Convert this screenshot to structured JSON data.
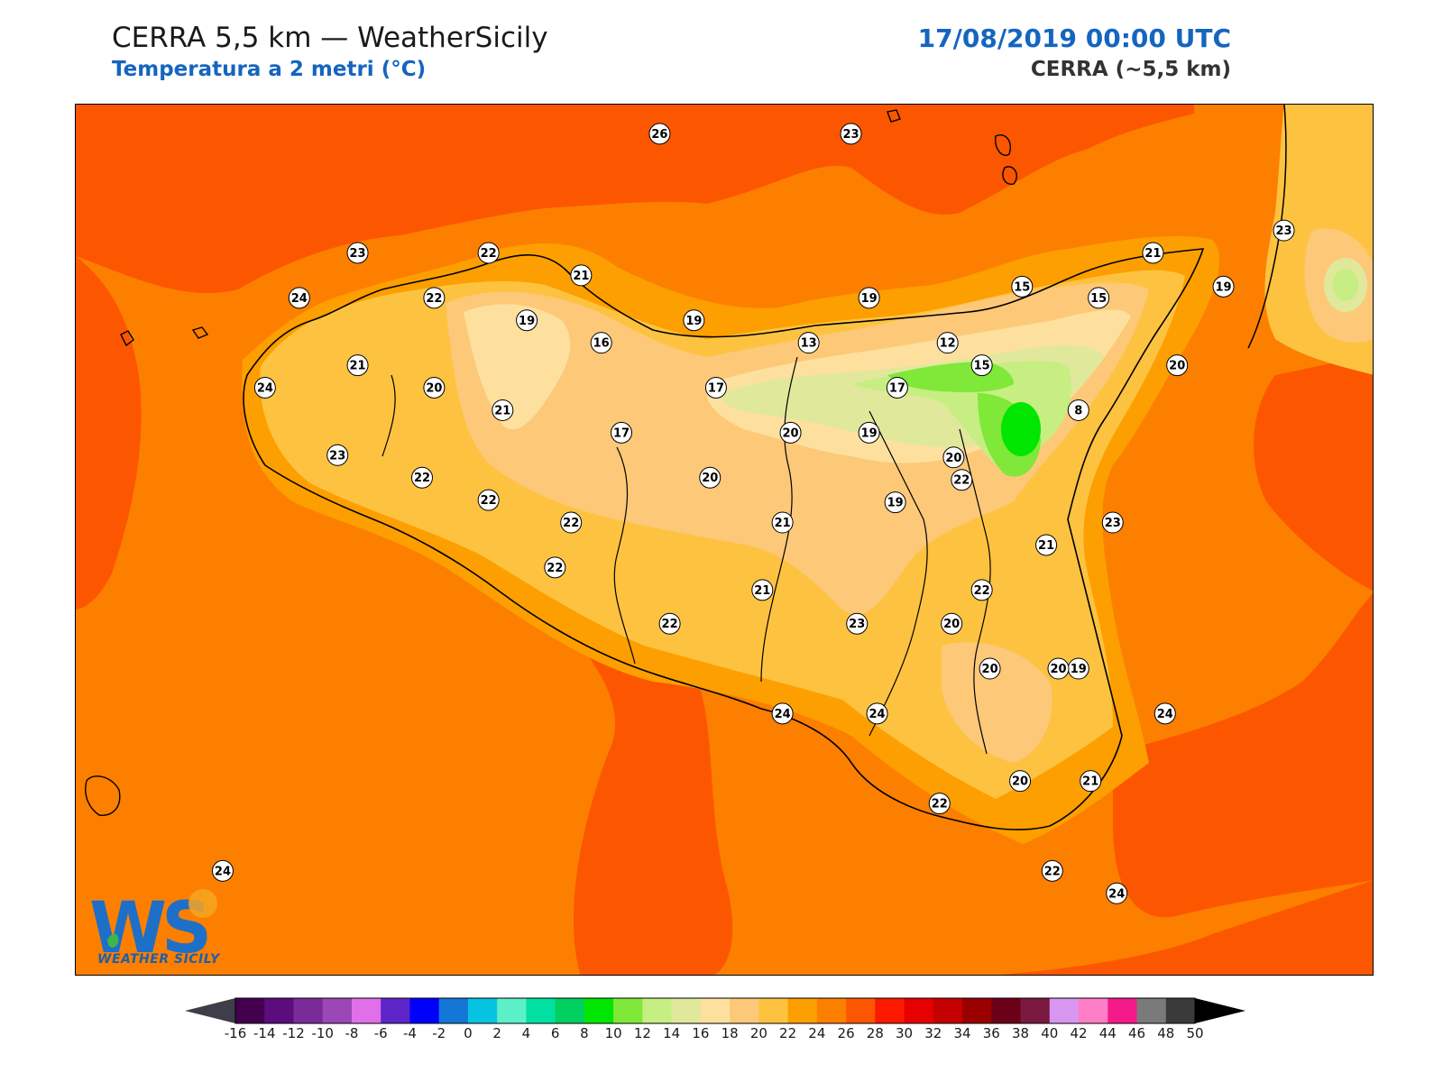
{
  "header": {
    "title": "CERRA 5,5 km — WeatherSicily",
    "subtitle": "Temperatura a 2 metri (°C)",
    "datetime": "17/08/2019 00:00 UTC",
    "model": "CERRA (~5,5 km)"
  },
  "logo": {
    "text": "WEATHER SICILY",
    "initials": "WS"
  },
  "colorbar": {
    "ticks": [
      "-16",
      "-14",
      "-12",
      "-10",
      "-8",
      "-6",
      "-4",
      "-2",
      "0",
      "2",
      "4",
      "6",
      "8",
      "10",
      "12",
      "14",
      "16",
      "18",
      "20",
      "22",
      "24",
      "26",
      "28",
      "30",
      "32",
      "34",
      "36",
      "38",
      "40",
      "42",
      "44",
      "46",
      "48",
      "50"
    ],
    "colors": [
      "#44004f",
      "#5b0d7d",
      "#7a2b99",
      "#9b47b5",
      "#e070e8",
      "#5e25c8",
      "#0000ff",
      "#1476d6",
      "#07c3e2",
      "#5cf0c8",
      "#00e0a0",
      "#00d060",
      "#00e600",
      "#7fe838",
      "#c6ee82",
      "#e0e89c",
      "#fde09e",
      "#fdc878",
      "#fdc340",
      "#fd9f00",
      "#fd7f00",
      "#fd5600",
      "#fd1800",
      "#e60000",
      "#c50000",
      "#9a0000",
      "#6c0018",
      "#7a1a40",
      "#d896f0",
      "#ff7ec8",
      "#f51a8a",
      "#7a7a7a",
      "#3a3a3a"
    ],
    "under_color": "#3e3e4a",
    "over_color": "#000000"
  },
  "stations": [
    {
      "value": "26",
      "lon": 14.0,
      "lat": 38.75
    },
    {
      "value": "23",
      "lon": 14.95,
      "lat": 38.75
    },
    {
      "value": "23",
      "lon": 12.5,
      "lat": 38.22
    },
    {
      "value": "22",
      "lon": 13.15,
      "lat": 38.22
    },
    {
      "value": "21",
      "lon": 13.61,
      "lat": 38.12
    },
    {
      "value": "24",
      "lon": 12.21,
      "lat": 38.02
    },
    {
      "value": "22",
      "lon": 12.88,
      "lat": 38.02
    },
    {
      "value": "19",
      "lon": 13.34,
      "lat": 37.92
    },
    {
      "value": "19",
      "lon": 14.17,
      "lat": 37.92
    },
    {
      "value": "19",
      "lon": 15.04,
      "lat": 38.02
    },
    {
      "value": "15",
      "lon": 15.8,
      "lat": 38.07
    },
    {
      "value": "15",
      "lon": 16.18,
      "lat": 38.02
    },
    {
      "value": "21",
      "lon": 16.45,
      "lat": 38.22
    },
    {
      "value": "23",
      "lon": 17.1,
      "lat": 38.32
    },
    {
      "value": "19",
      "lon": 16.8,
      "lat": 38.07
    },
    {
      "value": "16",
      "lon": 13.71,
      "lat": 37.82
    },
    {
      "value": "13",
      "lon": 14.74,
      "lat": 37.82
    },
    {
      "value": "12",
      "lon": 15.43,
      "lat": 37.82
    },
    {
      "value": "15",
      "lon": 15.6,
      "lat": 37.72
    },
    {
      "value": "20",
      "lon": 16.57,
      "lat": 37.72
    },
    {
      "value": "21",
      "lon": 12.5,
      "lat": 37.72
    },
    {
      "value": "24",
      "lon": 12.04,
      "lat": 37.62
    },
    {
      "value": "20",
      "lon": 12.88,
      "lat": 37.62
    },
    {
      "value": "17",
      "lon": 14.28,
      "lat": 37.62
    },
    {
      "value": "17",
      "lon": 15.18,
      "lat": 37.62
    },
    {
      "value": "8",
      "lon": 16.08,
      "lat": 37.52
    },
    {
      "value": "21",
      "lon": 13.22,
      "lat": 37.52
    },
    {
      "value": "17",
      "lon": 13.81,
      "lat": 37.42
    },
    {
      "value": "20",
      "lon": 14.65,
      "lat": 37.42
    },
    {
      "value": "19",
      "lon": 15.04,
      "lat": 37.42
    },
    {
      "value": "23",
      "lon": 12.4,
      "lat": 37.32
    },
    {
      "value": "20",
      "lon": 15.46,
      "lat": 37.31
    },
    {
      "value": "22",
      "lon": 12.82,
      "lat": 37.22
    },
    {
      "value": "20",
      "lon": 14.25,
      "lat": 37.22
    },
    {
      "value": "22",
      "lon": 15.5,
      "lat": 37.21
    },
    {
      "value": "22",
      "lon": 13.15,
      "lat": 37.12
    },
    {
      "value": "19",
      "lon": 15.17,
      "lat": 37.11
    },
    {
      "value": "22",
      "lon": 13.56,
      "lat": 37.02
    },
    {
      "value": "21",
      "lon": 14.61,
      "lat": 37.02
    },
    {
      "value": "23",
      "lon": 16.25,
      "lat": 37.02
    },
    {
      "value": "21",
      "lon": 15.92,
      "lat": 36.92
    },
    {
      "value": "22",
      "lon": 13.48,
      "lat": 36.82
    },
    {
      "value": "21",
      "lon": 14.51,
      "lat": 36.72
    },
    {
      "value": "22",
      "lon": 15.6,
      "lat": 36.72
    },
    {
      "value": "22",
      "lon": 14.05,
      "lat": 36.57
    },
    {
      "value": "23",
      "lon": 14.98,
      "lat": 36.57
    },
    {
      "value": "20",
      "lon": 15.45,
      "lat": 36.57
    },
    {
      "value": "19",
      "lon": 16.08,
      "lat": 36.37
    },
    {
      "value": "20",
      "lon": 15.64,
      "lat": 36.37
    },
    {
      "value": "20",
      "lon": 15.98,
      "lat": 36.37
    },
    {
      "value": "24",
      "lon": 14.61,
      "lat": 36.17
    },
    {
      "value": "24",
      "lon": 15.08,
      "lat": 36.17
    },
    {
      "value": "24",
      "lon": 16.51,
      "lat": 36.17
    },
    {
      "value": "20",
      "lon": 15.79,
      "lat": 35.87
    },
    {
      "value": "21",
      "lon": 16.14,
      "lat": 35.87
    },
    {
      "value": "22",
      "lon": 15.39,
      "lat": 35.77
    },
    {
      "value": "24",
      "lon": 11.83,
      "lat": 35.47
    },
    {
      "value": "22",
      "lon": 15.95,
      "lat": 35.47
    },
    {
      "value": "24",
      "lon": 16.27,
      "lat": 35.37
    }
  ]
}
